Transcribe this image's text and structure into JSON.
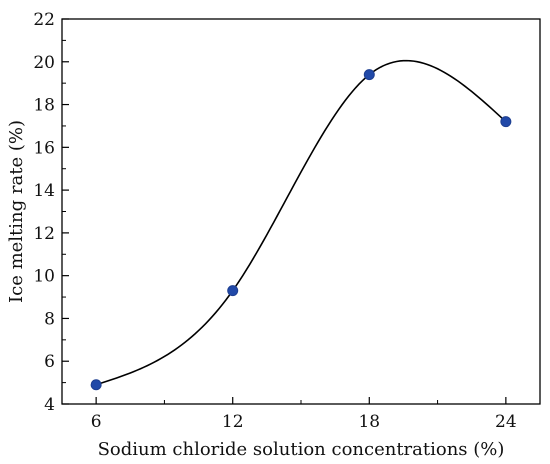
{
  "chart_data": {
    "type": "line",
    "x": [
      6,
      12,
      18,
      24
    ],
    "series": [
      {
        "values": [
          4.9,
          9.3,
          19.4,
          17.2
        ]
      }
    ],
    "xlabel": "Sodium chloride solution concentrations (%)",
    "ylabel": "Ice melting rate (%)",
    "xticks": [
      6,
      12,
      18,
      24
    ],
    "yticks": [
      4,
      6,
      8,
      10,
      12,
      14,
      16,
      18,
      20,
      22
    ],
    "xlim": [
      4.5,
      25.5
    ],
    "ylim": [
      4,
      22
    ],
    "grid": false,
    "smooth": true,
    "marker_color": "#2149a8",
    "line_color": "#000000"
  }
}
